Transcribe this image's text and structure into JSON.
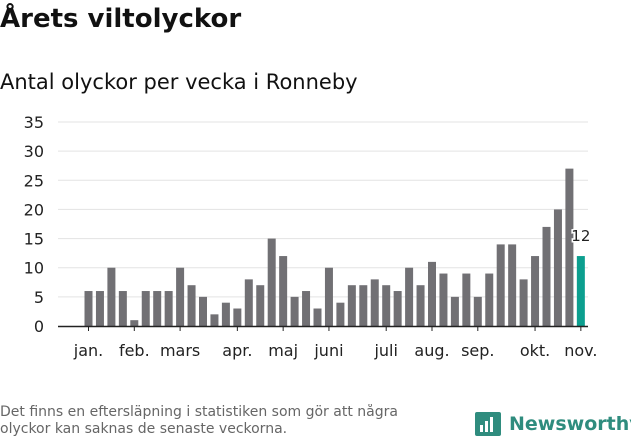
{
  "header": {
    "title": "Årets viltolyckor",
    "subtitle": "Antal olyckor per vecka i Ronneby"
  },
  "footer": {
    "note": "Det finns en eftersläpning i statistiken som gör att några olyckor kan saknas de senaste veckorna.",
    "brand": "Newsworthy"
  },
  "colors": {
    "bar": "#717074",
    "highlight": "#0c9f8f",
    "grid": "#e3e3e3",
    "axis": "#222222",
    "brand": "#2f8c7e"
  },
  "chart_data": {
    "type": "bar",
    "title": "Antal olyckor per vecka i Ronneby",
    "xlabel": "",
    "ylabel": "",
    "ylim": [
      0,
      35
    ],
    "yticks": [
      0,
      5,
      10,
      15,
      20,
      25,
      30,
      35
    ],
    "grid": true,
    "month_labels": [
      {
        "label": "jan.",
        "week": 1
      },
      {
        "label": "feb.",
        "week": 5
      },
      {
        "label": "mars",
        "week": 9
      },
      {
        "label": "apr.",
        "week": 14
      },
      {
        "label": "maj",
        "week": 18
      },
      {
        "label": "juni",
        "week": 22
      },
      {
        "label": "juli",
        "week": 27
      },
      {
        "label": "aug.",
        "week": 31
      },
      {
        "label": "sep.",
        "week": 35
      },
      {
        "label": "okt.",
        "week": 40
      },
      {
        "label": "nov.",
        "week": 44
      }
    ],
    "weeks": [
      1,
      2,
      3,
      4,
      5,
      6,
      7,
      8,
      9,
      10,
      11,
      12,
      13,
      14,
      15,
      16,
      17,
      18,
      19,
      20,
      21,
      22,
      23,
      24,
      25,
      26,
      27,
      28,
      29,
      30,
      31,
      32,
      33,
      34,
      35,
      36,
      37,
      38,
      39,
      40,
      41,
      42,
      43,
      44
    ],
    "values": [
      6,
      6,
      10,
      6,
      1,
      6,
      6,
      6,
      10,
      7,
      5,
      2,
      4,
      3,
      8,
      7,
      15,
      12,
      5,
      6,
      3,
      10,
      4,
      7,
      7,
      8,
      7,
      6,
      10,
      7,
      11,
      9,
      5,
      9,
      5,
      9,
      14,
      14,
      8,
      12,
      17,
      20,
      27,
      12
    ],
    "highlight_index": 43,
    "highlight_label": "12"
  }
}
